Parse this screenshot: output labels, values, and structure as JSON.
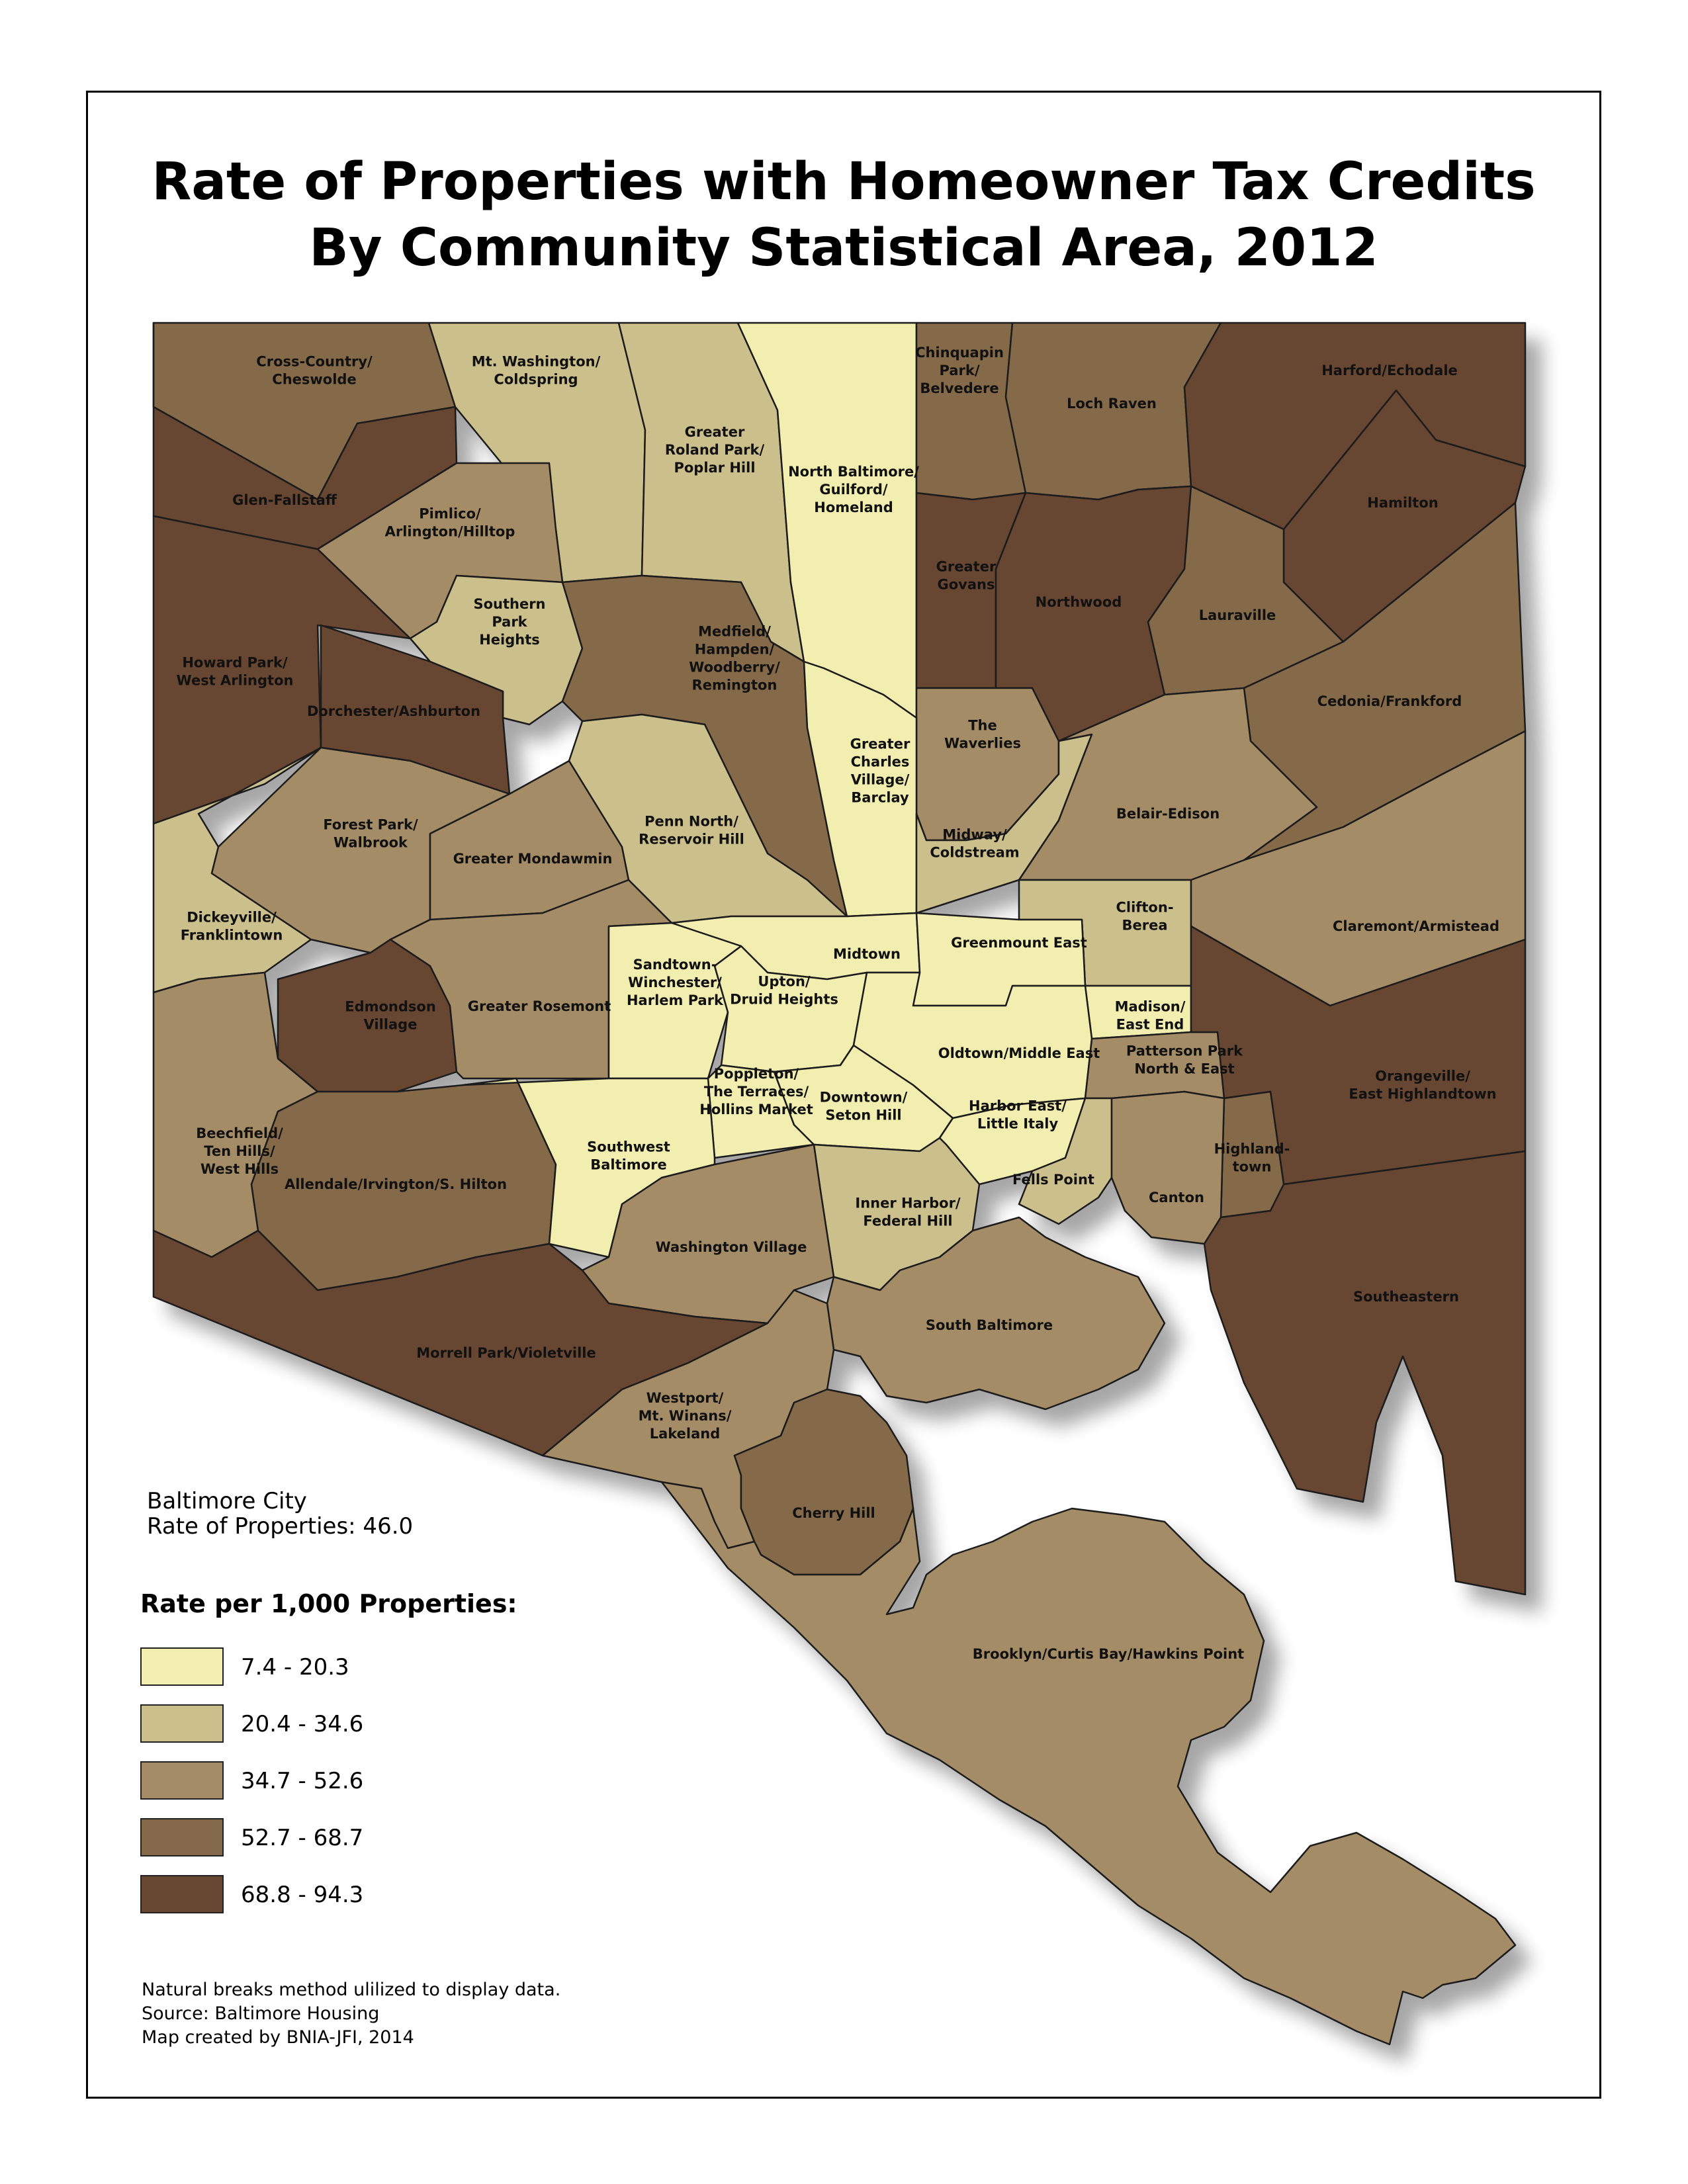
{
  "title": {
    "line1": "Rate of Properties with Homeowner Tax Credits",
    "line2": "By Community Statistical Area, 2012"
  },
  "city_summary": {
    "line1": "Baltimore City",
    "line2": "Rate of Properties: 46.0"
  },
  "legend": {
    "title": "Rate per 1,000 Properties:",
    "classes": [
      {
        "id": "c1",
        "label": "7.4 - 20.3",
        "color": "#f1eeb0"
      },
      {
        "id": "c2",
        "label": "20.4 - 34.6",
        "color": "#cbbf8c"
      },
      {
        "id": "c3",
        "label": "34.7 - 52.6",
        "color": "#a48d66"
      },
      {
        "id": "c4",
        "label": "52.7 - 68.7",
        "color": "#846a4a"
      },
      {
        "id": "c5",
        "label": "68.8 - 94.3",
        "color": "#674732"
      }
    ]
  },
  "notes": {
    "method": "Natural breaks method ulilized to display data.",
    "source": "Source: Baltimore Housing",
    "credit": "Map created by BNIA-JFI, 2014"
  },
  "areas": [
    {
      "id": "cross-country",
      "lines": [
        "Cross-Country/",
        "Cheswolde"
      ],
      "class": "c4"
    },
    {
      "id": "mt-washington",
      "lines": [
        "Mt. Washington/",
        "Coldspring"
      ],
      "class": "c2"
    },
    {
      "id": "greater-roland-park",
      "lines": [
        "Greater",
        "Roland Park/",
        "Poplar Hill"
      ],
      "class": "c2"
    },
    {
      "id": "north-baltimore",
      "lines": [
        "North Baltimore/",
        "Guilford/",
        "Homeland"
      ],
      "class": "c1"
    },
    {
      "id": "chinquapin-park",
      "lines": [
        "Chinquapin",
        "Park/",
        "Belvedere"
      ],
      "class": "c4"
    },
    {
      "id": "loch-raven",
      "lines": [
        "Loch Raven"
      ],
      "class": "c4"
    },
    {
      "id": "harford-echodale",
      "lines": [
        "Harford/Echodale"
      ],
      "class": "c5"
    },
    {
      "id": "glen-fallstaff",
      "lines": [
        "Glen-Fallstaff"
      ],
      "class": "c5"
    },
    {
      "id": "pimlico",
      "lines": [
        "Pimlico/",
        "Arlington/Hilltop"
      ],
      "class": "c3"
    },
    {
      "id": "hamilton",
      "lines": [
        "Hamilton"
      ],
      "class": "c5"
    },
    {
      "id": "greater-govans",
      "lines": [
        "Greater",
        "Govans"
      ],
      "class": "c5"
    },
    {
      "id": "northwood",
      "lines": [
        "Northwood"
      ],
      "class": "c5"
    },
    {
      "id": "lauraville",
      "lines": [
        "Lauraville"
      ],
      "class": "c4"
    },
    {
      "id": "southern-park-heights",
      "lines": [
        "Southern",
        "Park",
        "Heights"
      ],
      "class": "c2"
    },
    {
      "id": "medfield",
      "lines": [
        "Medfield/",
        "Hampden/",
        "Woodberry/",
        "Remington"
      ],
      "class": "c4"
    },
    {
      "id": "howard-park",
      "lines": [
        "Howard Park/",
        "West Arlington"
      ],
      "class": "c5"
    },
    {
      "id": "dorchester",
      "lines": [
        "Dorchester/Ashburton"
      ],
      "class": "c5"
    },
    {
      "id": "cedonia",
      "lines": [
        "Cedonia/Frankford"
      ],
      "class": "c4"
    },
    {
      "id": "waverlies",
      "lines": [
        "The",
        "Waverlies"
      ],
      "class": "c3"
    },
    {
      "id": "greater-charles-village",
      "lines": [
        "Greater",
        "Charles",
        "Village/",
        "Barclay"
      ],
      "class": "c1"
    },
    {
      "id": "belair-edison",
      "lines": [
        "Belair-Edison"
      ],
      "class": "c3"
    },
    {
      "id": "forest-park",
      "lines": [
        "Forest Park/",
        "Walbrook"
      ],
      "class": "c3"
    },
    {
      "id": "penn-north",
      "lines": [
        "Penn North/",
        "Reservoir Hill"
      ],
      "class": "c2"
    },
    {
      "id": "greater-mondawmin",
      "lines": [
        "Greater Mondawmin"
      ],
      "class": "c3"
    },
    {
      "id": "midway",
      "lines": [
        "Midway/",
        "Coldstream"
      ],
      "class": "c2"
    },
    {
      "id": "clifton-berea",
      "lines": [
        "Clifton-",
        "Berea"
      ],
      "class": "c2"
    },
    {
      "id": "dickeyville",
      "lines": [
        "Dickeyville/",
        "Franklintown"
      ],
      "class": "c2"
    },
    {
      "id": "claremont",
      "lines": [
        "Claremont/Armistead"
      ],
      "class": "c3"
    },
    {
      "id": "midtown",
      "lines": [
        "Midtown"
      ],
      "class": "c1"
    },
    {
      "id": "greenmount-east",
      "lines": [
        "Greenmount East"
      ],
      "class": "c1"
    },
    {
      "id": "edmondson-village",
      "lines": [
        "Edmondson",
        "Village"
      ],
      "class": "c5"
    },
    {
      "id": "greater-rosemont",
      "lines": [
        "Greater Rosemont"
      ],
      "class": "c3"
    },
    {
      "id": "sandtown",
      "lines": [
        "Sandtown-",
        "Winchester/",
        "Harlem Park"
      ],
      "class": "c1"
    },
    {
      "id": "upton",
      "lines": [
        "Upton/",
        "Druid Heights"
      ],
      "class": "c1"
    },
    {
      "id": "madison",
      "lines": [
        "Madison/",
        "East End"
      ],
      "class": "c1"
    },
    {
      "id": "oldtown",
      "lines": [
        "Oldtown/Middle East"
      ],
      "class": "c1"
    },
    {
      "id": "patterson-park",
      "lines": [
        "Patterson Park",
        "North & East"
      ],
      "class": "c3"
    },
    {
      "id": "orangeville",
      "lines": [
        "Orangeville/",
        "East Highlandtown"
      ],
      "class": "c5"
    },
    {
      "id": "poppleton",
      "lines": [
        "Poppleton/",
        "The Terraces/",
        "Hollins Market"
      ],
      "class": "c1"
    },
    {
      "id": "downtown",
      "lines": [
        "Downtown/",
        "Seton Hill"
      ],
      "class": "c1"
    },
    {
      "id": "harbor-east",
      "lines": [
        "Harbor East/",
        "Little Italy"
      ],
      "class": "c1"
    },
    {
      "id": "beechfield",
      "lines": [
        "Beechfield/",
        "Ten Hills/",
        "West Hills"
      ],
      "class": "c3"
    },
    {
      "id": "allendale",
      "lines": [
        "Allendale/Irvington/S. Hilton"
      ],
      "class": "c4"
    },
    {
      "id": "southwest-baltimore",
      "lines": [
        "Southwest",
        "Baltimore"
      ],
      "class": "c1"
    },
    {
      "id": "highlandtown",
      "lines": [
        "Highland-",
        "town"
      ],
      "class": "c4"
    },
    {
      "id": "fells-point",
      "lines": [
        "Fells Point"
      ],
      "class": "c2"
    },
    {
      "id": "canton",
      "lines": [
        "Canton"
      ],
      "class": "c3"
    },
    {
      "id": "inner-harbor",
      "lines": [
        "Inner Harbor/",
        "Federal Hill"
      ],
      "class": "c2"
    },
    {
      "id": "washington-village",
      "lines": [
        "Washington Village"
      ],
      "class": "c3"
    },
    {
      "id": "southeastern",
      "lines": [
        "Southeastern"
      ],
      "class": "c5"
    },
    {
      "id": "south-baltimore",
      "lines": [
        "South Baltimore"
      ],
      "class": "c3"
    },
    {
      "id": "morrell-park",
      "lines": [
        "Morrell Park/Violetville"
      ],
      "class": "c5"
    },
    {
      "id": "westport",
      "lines": [
        "Westport/",
        "Mt. Winans/",
        "Lakeland"
      ],
      "class": "c3"
    },
    {
      "id": "cherry-hill",
      "lines": [
        "Cherry Hill"
      ],
      "class": "c4"
    },
    {
      "id": "brooklyn",
      "lines": [
        "Brooklyn/Curtis Bay/Hawkins Point"
      ],
      "class": "c3"
    }
  ]
}
